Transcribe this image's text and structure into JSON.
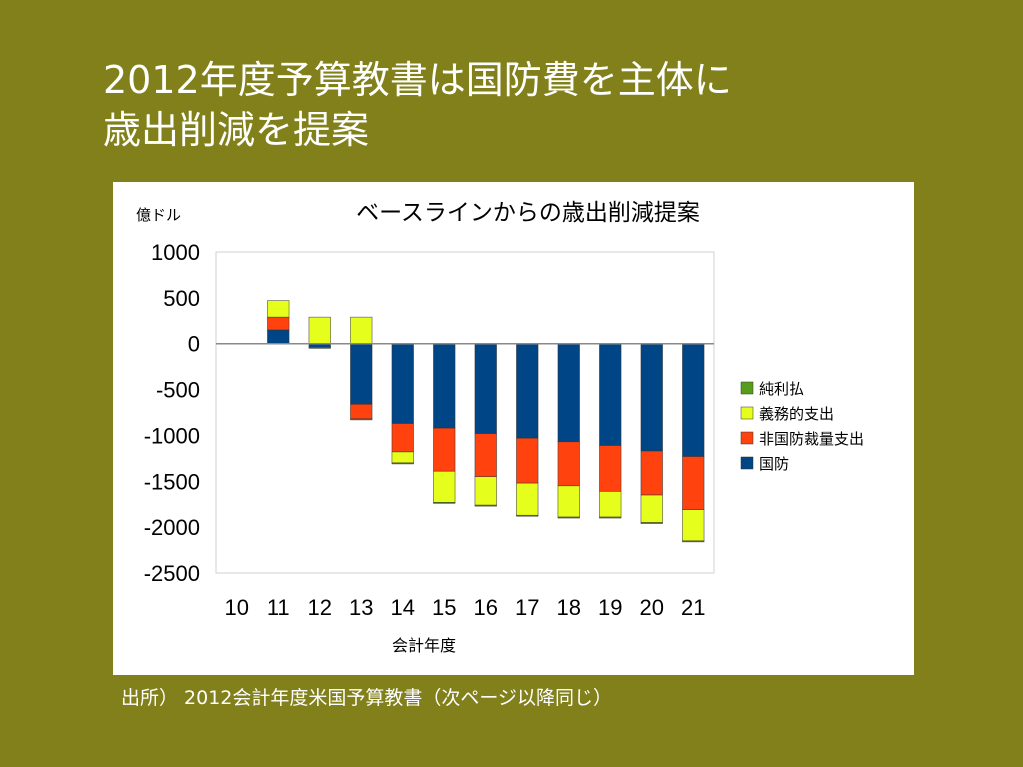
{
  "slide": {
    "title_line1": "2012年度予算教書は国防費を主体に",
    "title_line2": "歳出削減を提案",
    "source_note": "出所） 2012会計年度米国予算教書（次ページ以降同じ）"
  },
  "chart_data": {
    "type": "bar",
    "stacked": true,
    "title": "ベースラインからの歳出削減提案",
    "unit_label": "億ドル",
    "xlabel": "会計年度",
    "ylabel": "",
    "ylim": [
      -2500,
      1000
    ],
    "yticks": [
      1000,
      500,
      0,
      -500,
      -1000,
      -1500,
      -2000,
      -2500
    ],
    "categories": [
      "10",
      "11",
      "12",
      "13",
      "14",
      "15",
      "16",
      "17",
      "18",
      "19",
      "20",
      "21"
    ],
    "legend_position": "right",
    "grid": false,
    "series": [
      {
        "name": "国防",
        "color": "#004586",
        "values": [
          0,
          150,
          -40,
          -660,
          -870,
          -920,
          -980,
          -1030,
          -1070,
          -1110,
          -1170,
          -1230
        ]
      },
      {
        "name": "非国防裁量支出",
        "color": "#ff420e",
        "values": [
          0,
          140,
          0,
          -160,
          -310,
          -470,
          -470,
          -490,
          -480,
          -500,
          -480,
          -580
        ]
      },
      {
        "name": "義務的支出",
        "color": "#e6fe1b",
        "values": [
          0,
          180,
          290,
          290,
          -120,
          -340,
          -310,
          -350,
          -340,
          -280,
          -300,
          -340
        ]
      },
      {
        "name": "純利払",
        "color": "#579d1c",
        "values": [
          0,
          0,
          -10,
          -10,
          -10,
          -10,
          -10,
          -10,
          -10,
          -10,
          -10,
          -10
        ]
      }
    ],
    "legend_order": [
      "純利払",
      "義務的支出",
      "非国防裁量支出",
      "国防"
    ]
  }
}
